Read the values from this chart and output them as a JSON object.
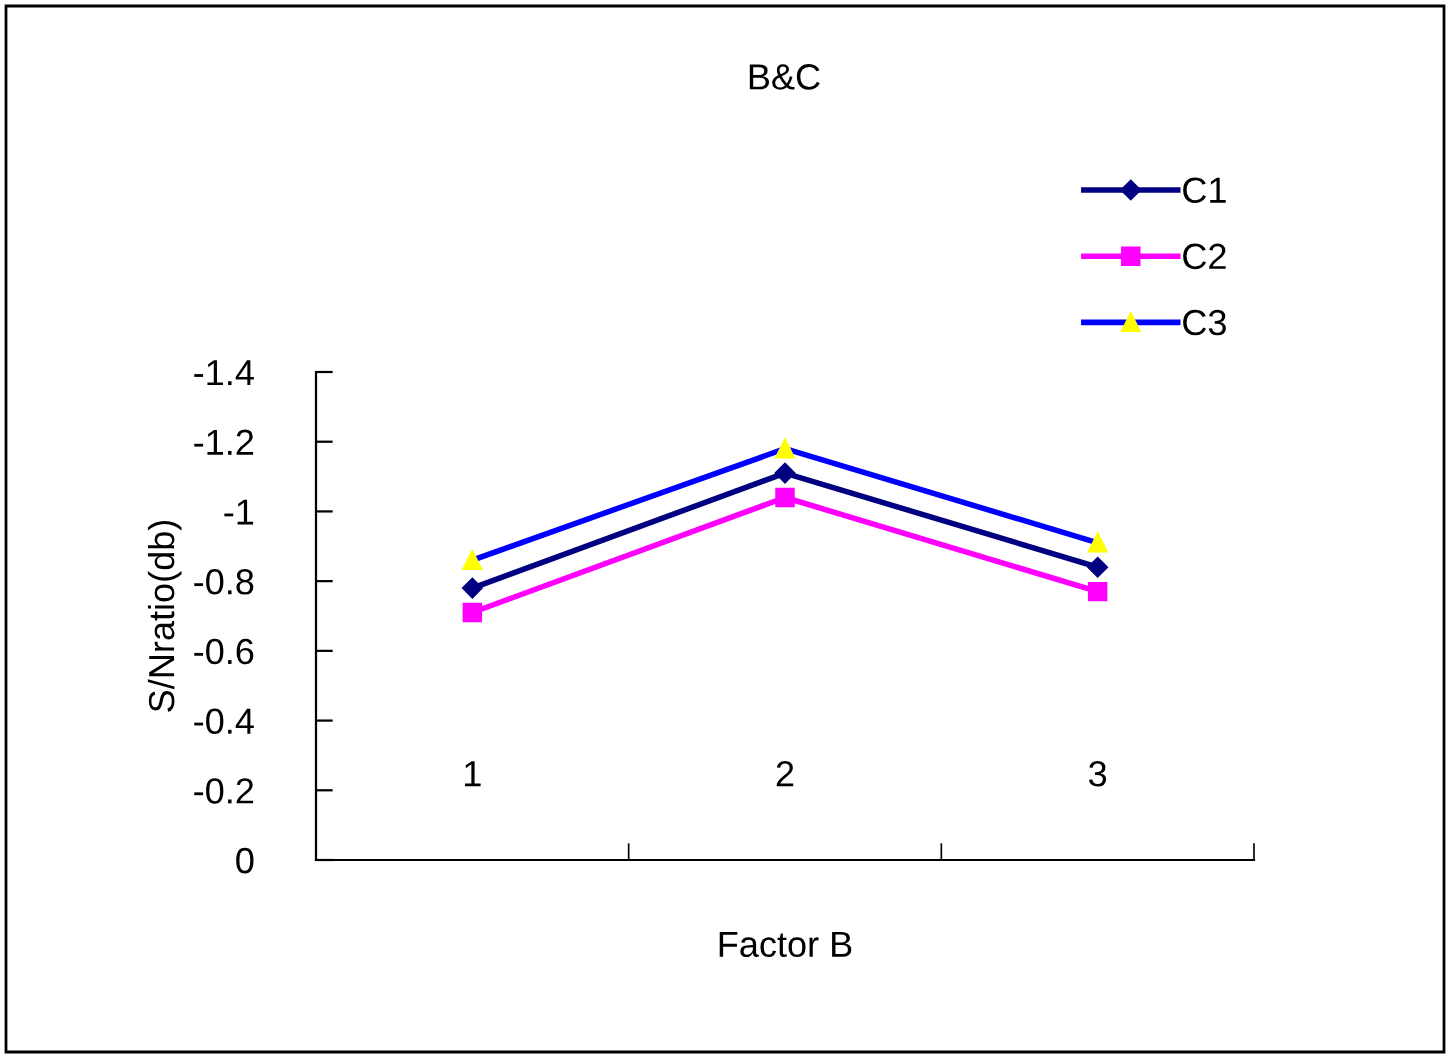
{
  "chart_data": {
    "type": "line",
    "title": "B&C",
    "xlabel": "Factor B",
    "ylabel": "S/Nratio(db)",
    "categories": [
      "1",
      "2",
      "3"
    ],
    "series": [
      {
        "name": "C1",
        "color": "#000080",
        "marker": "diamond",
        "values": [
          -0.78,
          -1.11,
          -0.84
        ]
      },
      {
        "name": "C2",
        "color": "#ff00ff",
        "marker": "square",
        "values": [
          -0.71,
          -1.04,
          -0.77
        ]
      },
      {
        "name": "C3",
        "color": "#0000ff",
        "marker": "triangle",
        "colors": [
          "#ffff00",
          "#ffff00",
          "#ffff00"
        ],
        "values": [
          -0.86,
          -1.18,
          -0.91
        ]
      }
    ],
    "ylim": [
      0,
      -1.4
    ],
    "yticks": [
      0,
      -0.2,
      -0.4,
      -0.6,
      -0.8,
      -1,
      -1.2,
      -1.4
    ],
    "grid": false,
    "legend": "top right",
    "line_style": "solid"
  }
}
